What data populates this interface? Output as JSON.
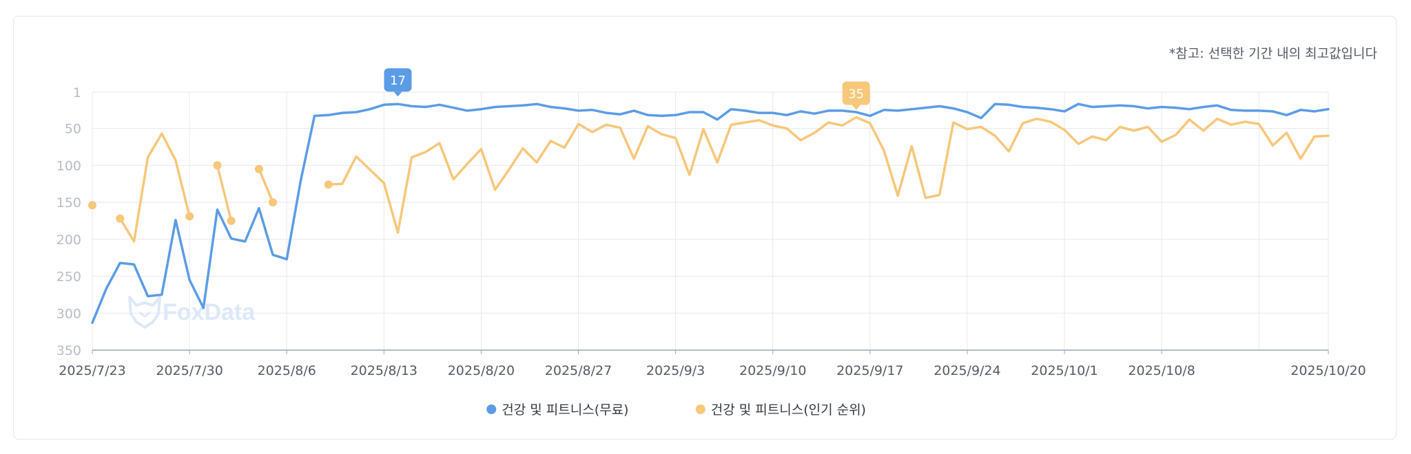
{
  "note": "*참고: 선택한 기간 내의 최고값입니다",
  "watermark": "FoxData",
  "colors": {
    "series_free": "#5b9ce6",
    "series_popular": "#f7c77a",
    "grid": "#e6e8ee",
    "axis": "#9aa4b8",
    "tick_label": "#b8bcc4",
    "x_label": "#555a63",
    "badge_text": "#ffffff",
    "watermark": "#dde8f7"
  },
  "chart_data": {
    "type": "line",
    "y_axis": {
      "reversed": true,
      "min": 1,
      "max": 350,
      "ticks": [
        1,
        50,
        100,
        150,
        200,
        250,
        300,
        350
      ]
    },
    "x_axis": {
      "start": "2025/7/23",
      "end": "2025/10/20",
      "tick_labels": [
        "2025/7/23",
        "2025/7/30",
        "2025/8/6",
        "2025/8/13",
        "2025/8/20",
        "2025/8/27",
        "2025/9/3",
        "2025/9/10",
        "2025/9/17",
        "2025/9/24",
        "2025/10/1",
        "2025/10/8",
        "2025/10/20"
      ],
      "gridlines_days": [
        0,
        7,
        14,
        21,
        28,
        35,
        42,
        49,
        56,
        63,
        70,
        77,
        84,
        89
      ]
    },
    "grid": true,
    "legend_position": "bottom-center",
    "series": [
      {
        "name": "건강 및 피트니스(무료)",
        "color": "#5b9ce6",
        "peak": {
          "label": "17",
          "date": "2025/8/14"
        },
        "values": [
          313,
          267,
          232,
          234,
          277,
          275,
          174,
          255,
          293,
          160,
          199,
          203,
          158,
          221,
          227,
          121,
          33,
          32,
          29,
          28,
          24,
          18,
          17,
          20,
          21,
          18,
          22,
          26,
          24,
          21,
          20,
          19,
          17,
          21,
          23,
          26,
          25,
          29,
          31,
          26,
          32,
          33,
          32,
          28,
          28,
          38,
          24,
          26,
          29,
          29,
          32,
          27,
          30,
          26,
          26,
          28,
          33,
          25,
          26,
          24,
          22,
          20,
          23,
          28,
          36,
          17,
          18,
          21,
          22,
          24,
          27,
          17,
          21,
          20,
          19,
          20,
          23,
          21,
          22,
          24,
          21,
          19,
          25,
          26,
          26,
          27,
          32,
          25,
          27,
          24
        ],
        "points": [
          1,
          2,
          3,
          4,
          5,
          6,
          7,
          8,
          9,
          10
        ]
      },
      {
        "name": "건강 및 피트니스(인기 순위)",
        "color": "#f7c77a",
        "peak": {
          "label": "35",
          "date": "2025/9/16"
        },
        "values": [
          154,
          null,
          172,
          203,
          89,
          57,
          93,
          169,
          null,
          100,
          175,
          null,
          105,
          150,
          null,
          null,
          null,
          126,
          125,
          88,
          106,
          124,
          191,
          89,
          82,
          70,
          119,
          98,
          78,
          133,
          106,
          77,
          96,
          67,
          76,
          44,
          55,
          45,
          49,
          91,
          47,
          58,
          63,
          113,
          51,
          96,
          45,
          42,
          39,
          46,
          50,
          66,
          56,
          42,
          46,
          35,
          43,
          80,
          141,
          74,
          144,
          140,
          42,
          51,
          48,
          60,
          81,
          43,
          37,
          41,
          52,
          71,
          61,
          66,
          48,
          53,
          48,
          68,
          59,
          38,
          53,
          37,
          45,
          41,
          44,
          73,
          56,
          91,
          61,
          60
        ]
      }
    ]
  },
  "legend": [
    {
      "label": "건강 및 피트니스(무료)",
      "color": "#5b9ce6"
    },
    {
      "label": "건강 및 피트니스(인기 순위)",
      "color": "#f7c77a"
    }
  ]
}
